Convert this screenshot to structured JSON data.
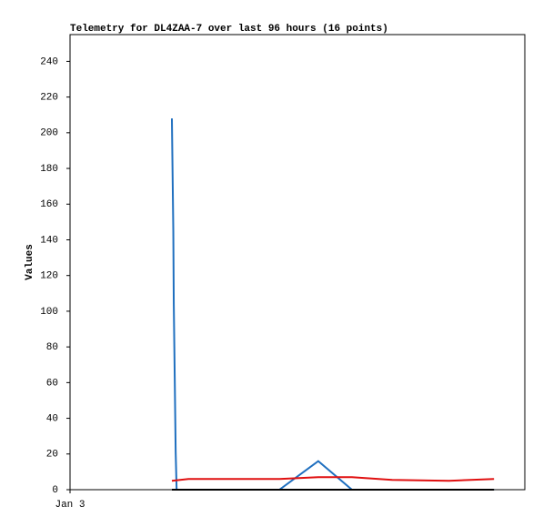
{
  "chart_data": {
    "type": "line",
    "title": "Telemetry for DL4ZAA-7 over last 96 hours (16 points)",
    "y_label": "Values",
    "xlim": [
      0,
      96
    ],
    "xticks": [
      {
        "value": 0,
        "label": "Jan 3"
      }
    ],
    "ylim": [
      0,
      255
    ],
    "yticks": [
      0,
      20,
      40,
      60,
      80,
      100,
      120,
      140,
      160,
      180,
      200,
      220,
      240
    ],
    "grid": false,
    "series": [
      {
        "color": "#1f6fbf",
        "x": [
          21.5,
          21.6,
          21.8,
          21.9,
          22.1,
          22.3,
          22.5,
          44.2,
          52.4,
          59.5,
          89.5
        ],
        "values": [
          208,
          187,
          145,
          104,
          63,
          21,
          0,
          0,
          16,
          0,
          0
        ]
      },
      {
        "color": "#e01010",
        "x": [
          21.5,
          25,
          44.2,
          52.4,
          59.5,
          68,
          80,
          89.5
        ],
        "values": [
          5,
          6,
          6,
          7,
          7,
          5.5,
          5,
          6
        ]
      },
      {
        "color": "#000000",
        "x": [
          21.5,
          89.5
        ],
        "values": [
          0,
          0
        ]
      }
    ]
  }
}
